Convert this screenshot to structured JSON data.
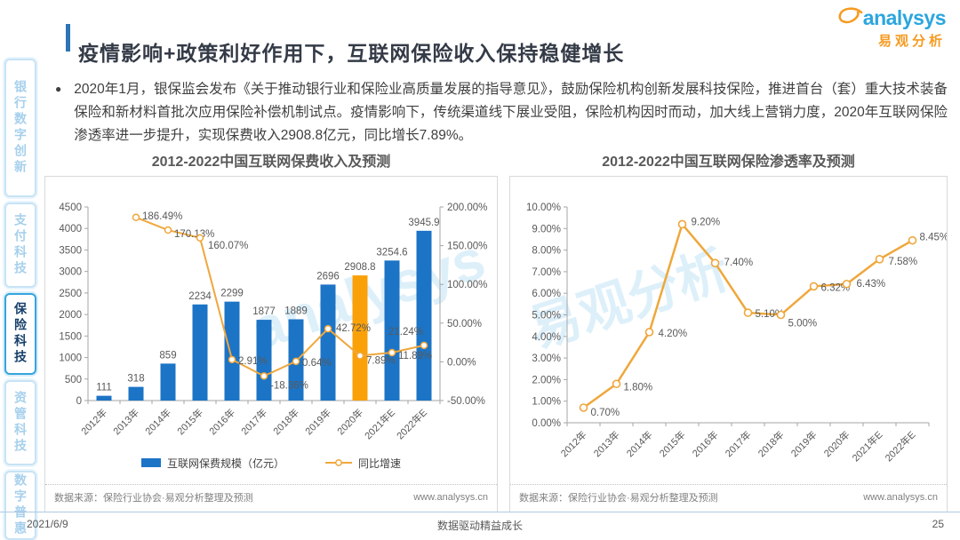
{
  "header": {
    "title": "疫情影响+政策利好作用下，互联网保险收入保持稳健增长",
    "accent_color": "#2E74B5",
    "logo": {
      "brand": "analysys",
      "brand_cn": "易观分析",
      "brand_color": "#2BA6DF",
      "swoosh_color": "#F59B22"
    }
  },
  "sidebar": {
    "items": [
      {
        "label": "银行数字创新",
        "active": false
      },
      {
        "label": "支付科技",
        "active": false
      },
      {
        "label": "保险科技",
        "active": true
      },
      {
        "label": "资管科技",
        "active": false
      },
      {
        "label": "数字普惠",
        "active": false
      }
    ]
  },
  "bullet": {
    "text": "2020年1月，银保监会发布《关于推动银行业和保险业高质量发展的指导意见》，鼓励保险机构创新发展科技保险，推进首台（套）重大技术装备保险和新材料首批次应用保险补偿机制试点。疫情影响下，传统渠道线下展业受阻，保险机构因时而动，加大线上营销力度，2020年互联网保险渗透率进一步提升，实现保费收入2908.8亿元，同比增长7.89%。"
  },
  "watermark": {
    "left": "analysys",
    "right": "易观分析"
  },
  "chart_data": [
    {
      "type": "bar+line",
      "title": "2012-2022中国互联网保费收入及预测",
      "categories": [
        "2012年",
        "2013年",
        "2014年",
        "2015年",
        "2016年",
        "2017年",
        "2018年",
        "2019年",
        "2020年",
        "2021年E",
        "2022年E"
      ],
      "series": [
        {
          "name": "互联网保费规模（亿元）",
          "type": "bar",
          "values": [
            111,
            318,
            859,
            2234,
            2299,
            1877,
            1889,
            2696,
            2908.8,
            3254.6,
            3945.9
          ],
          "color": "#1C74C6",
          "highlight": {
            "index": 8,
            "color": "#FAA109"
          }
        },
        {
          "name": "同比增速",
          "type": "line",
          "axis": "right",
          "values": [
            null,
            186.49,
            170.13,
            160.07,
            2.91,
            -18.36,
            0.64,
            42.72,
            7.89,
            11.89,
            21.24
          ],
          "color": "#EFA73C"
        }
      ],
      "left_axis": {
        "min": 0,
        "max": 4500,
        "step": 500
      },
      "right_axis": {
        "min": -50,
        "max": 200,
        "step": 50,
        "format": "percent"
      },
      "data_labels": true,
      "grid": false,
      "legend_position": "bottom",
      "source": "数据来源：保险行业协会·易观分析整理及预测",
      "website": "www.analysys.cn"
    },
    {
      "type": "line",
      "title": "2012-2022中国互联网保险渗透率及预测",
      "categories": [
        "2012年",
        "2013年",
        "2014年",
        "2015年",
        "2016年",
        "2017年",
        "2018年",
        "2019年",
        "2020年",
        "2021年E",
        "2022年E"
      ],
      "series": [
        {
          "name": "互联网保险渗透率",
          "type": "line",
          "values": [
            0.7,
            1.8,
            4.2,
            9.2,
            7.4,
            5.1,
            5.0,
            6.32,
            6.43,
            7.58,
            8.45
          ],
          "color": "#EFA73C"
        }
      ],
      "y_axis": {
        "min": 0,
        "max": 10,
        "step": 1,
        "format": "percent"
      },
      "data_labels": true,
      "grid": false,
      "legend_position": "none",
      "source": "数据来源：保险行业协会·易观分析整理及预测",
      "website": "www.analysys.cn"
    }
  ],
  "footer": {
    "date": "2021/6/9",
    "center": "数据驱动精益成长",
    "page": "25"
  }
}
